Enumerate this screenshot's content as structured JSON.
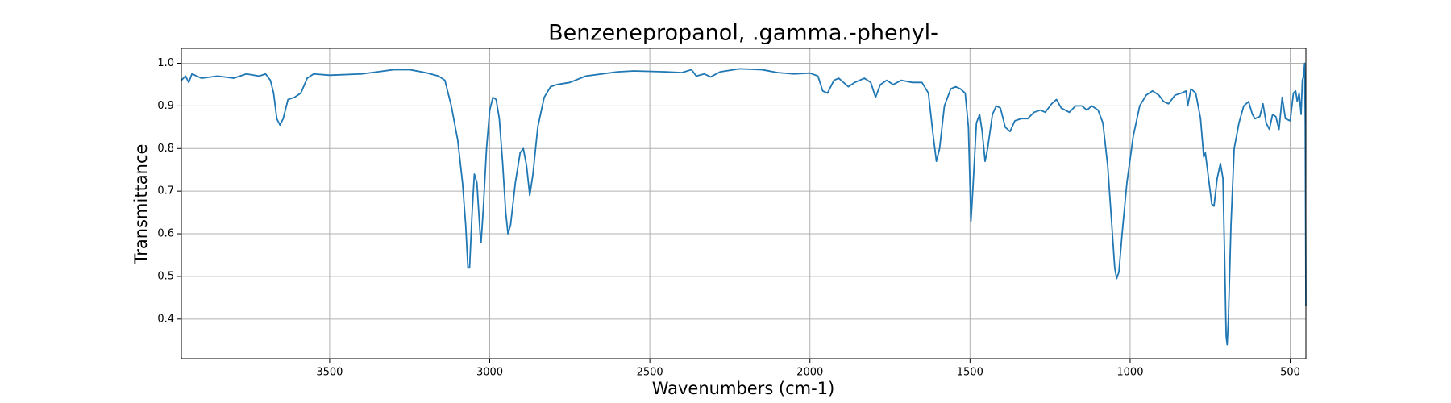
{
  "chart_data": {
    "type": "line",
    "title": "Benzenepropanol, .gamma.-phenyl-",
    "x_label": "Wavenumbers (cm-1)",
    "y_label": "Transmittance",
    "color": "#1f77b4",
    "grid": true,
    "xlim": [
      3963,
      451
    ],
    "ylim": [
      0.307,
      1.035
    ],
    "xticks": [
      3500,
      3000,
      2500,
      2000,
      1500,
      1000,
      500
    ],
    "yticks": [
      0.4,
      0.5,
      0.6,
      0.7,
      0.8,
      0.9,
      {
        "value": 1,
        "label": "1.0"
      }
    ],
    "x": [
      3963,
      3950,
      3940,
      3930,
      3900,
      3850,
      3800,
      3760,
      3720,
      3700,
      3685,
      3675,
      3665,
      3655,
      3645,
      3630,
      3610,
      3590,
      3570,
      3550,
      3500,
      3400,
      3350,
      3300,
      3250,
      3200,
      3160,
      3140,
      3120,
      3100,
      3085,
      3075,
      3068,
      3063,
      3055,
      3048,
      3040,
      3030,
      3027,
      3020,
      3010,
      3000,
      2990,
      2980,
      2970,
      2960,
      2950,
      2943,
      2935,
      2920,
      2905,
      2895,
      2885,
      2875,
      2865,
      2850,
      2830,
      2810,
      2790,
      2750,
      2700,
      2600,
      2550,
      2450,
      2400,
      2370,
      2355,
      2330,
      2310,
      2280,
      2220,
      2150,
      2100,
      2050,
      2000,
      1975,
      1960,
      1945,
      1925,
      1910,
      1895,
      1880,
      1860,
      1830,
      1810,
      1795,
      1780,
      1760,
      1740,
      1715,
      1680,
      1650,
      1630,
      1615,
      1605,
      1595,
      1580,
      1560,
      1545,
      1530,
      1515,
      1505,
      1497,
      1490,
      1480,
      1470,
      1462,
      1453,
      1445,
      1430,
      1418,
      1405,
      1390,
      1375,
      1360,
      1340,
      1320,
      1300,
      1280,
      1265,
      1245,
      1230,
      1215,
      1190,
      1170,
      1150,
      1135,
      1120,
      1100,
      1085,
      1070,
      1058,
      1048,
      1042,
      1035,
      1025,
      1010,
      990,
      970,
      950,
      930,
      910,
      895,
      880,
      860,
      840,
      825,
      820,
      810,
      795,
      780,
      770,
      765,
      755,
      745,
      738,
      728,
      718,
      710,
      705,
      700,
      697,
      693,
      685,
      675,
      660,
      645,
      630,
      618,
      610,
      595,
      585,
      575,
      565,
      555,
      545,
      535,
      525,
      515,
      500,
      490,
      483,
      478,
      472,
      466,
      462,
      458,
      455,
      453,
      451
    ],
    "values": [
      0.96,
      0.97,
      0.955,
      0.975,
      0.965,
      0.97,
      0.965,
      0.975,
      0.97,
      0.975,
      0.96,
      0.93,
      0.87,
      0.855,
      0.87,
      0.915,
      0.92,
      0.93,
      0.965,
      0.975,
      0.972,
      0.975,
      0.98,
      0.985,
      0.985,
      0.978,
      0.97,
      0.96,
      0.9,
      0.82,
      0.72,
      0.62,
      0.52,
      0.52,
      0.65,
      0.74,
      0.72,
      0.6,
      0.58,
      0.66,
      0.8,
      0.89,
      0.92,
      0.915,
      0.87,
      0.77,
      0.65,
      0.6,
      0.62,
      0.72,
      0.79,
      0.8,
      0.76,
      0.69,
      0.74,
      0.85,
      0.92,
      0.945,
      0.95,
      0.955,
      0.97,
      0.98,
      0.982,
      0.98,
      0.978,
      0.985,
      0.97,
      0.975,
      0.968,
      0.98,
      0.987,
      0.985,
      0.978,
      0.975,
      0.977,
      0.97,
      0.935,
      0.93,
      0.96,
      0.965,
      0.955,
      0.945,
      0.955,
      0.965,
      0.955,
      0.92,
      0.95,
      0.96,
      0.95,
      0.96,
      0.955,
      0.955,
      0.93,
      0.83,
      0.77,
      0.8,
      0.9,
      0.94,
      0.945,
      0.94,
      0.93,
      0.85,
      0.63,
      0.72,
      0.86,
      0.88,
      0.84,
      0.77,
      0.8,
      0.88,
      0.9,
      0.895,
      0.85,
      0.84,
      0.865,
      0.87,
      0.87,
      0.885,
      0.89,
      0.885,
      0.905,
      0.915,
      0.895,
      0.885,
      0.9,
      0.9,
      0.89,
      0.9,
      0.89,
      0.86,
      0.76,
      0.63,
      0.52,
      0.495,
      0.51,
      0.6,
      0.72,
      0.83,
      0.9,
      0.925,
      0.935,
      0.925,
      0.91,
      0.905,
      0.925,
      0.93,
      0.935,
      0.9,
      0.94,
      0.93,
      0.87,
      0.78,
      0.79,
      0.73,
      0.67,
      0.665,
      0.73,
      0.765,
      0.73,
      0.55,
      0.36,
      0.34,
      0.4,
      0.62,
      0.8,
      0.86,
      0.9,
      0.91,
      0.88,
      0.87,
      0.875,
      0.905,
      0.86,
      0.845,
      0.88,
      0.875,
      0.845,
      0.92,
      0.87,
      0.865,
      0.93,
      0.935,
      0.91,
      0.93,
      0.88,
      0.96,
      0.97,
      1.0,
      0.86,
      0.43
    ]
  }
}
